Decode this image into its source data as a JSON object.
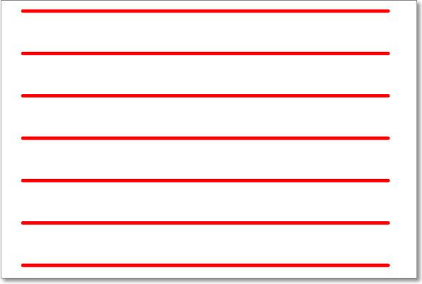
{
  "line_color": "#ff0000",
  "line_count": 7,
  "lines": [
    {},
    {},
    {},
    {},
    {},
    {},
    {}
  ]
}
